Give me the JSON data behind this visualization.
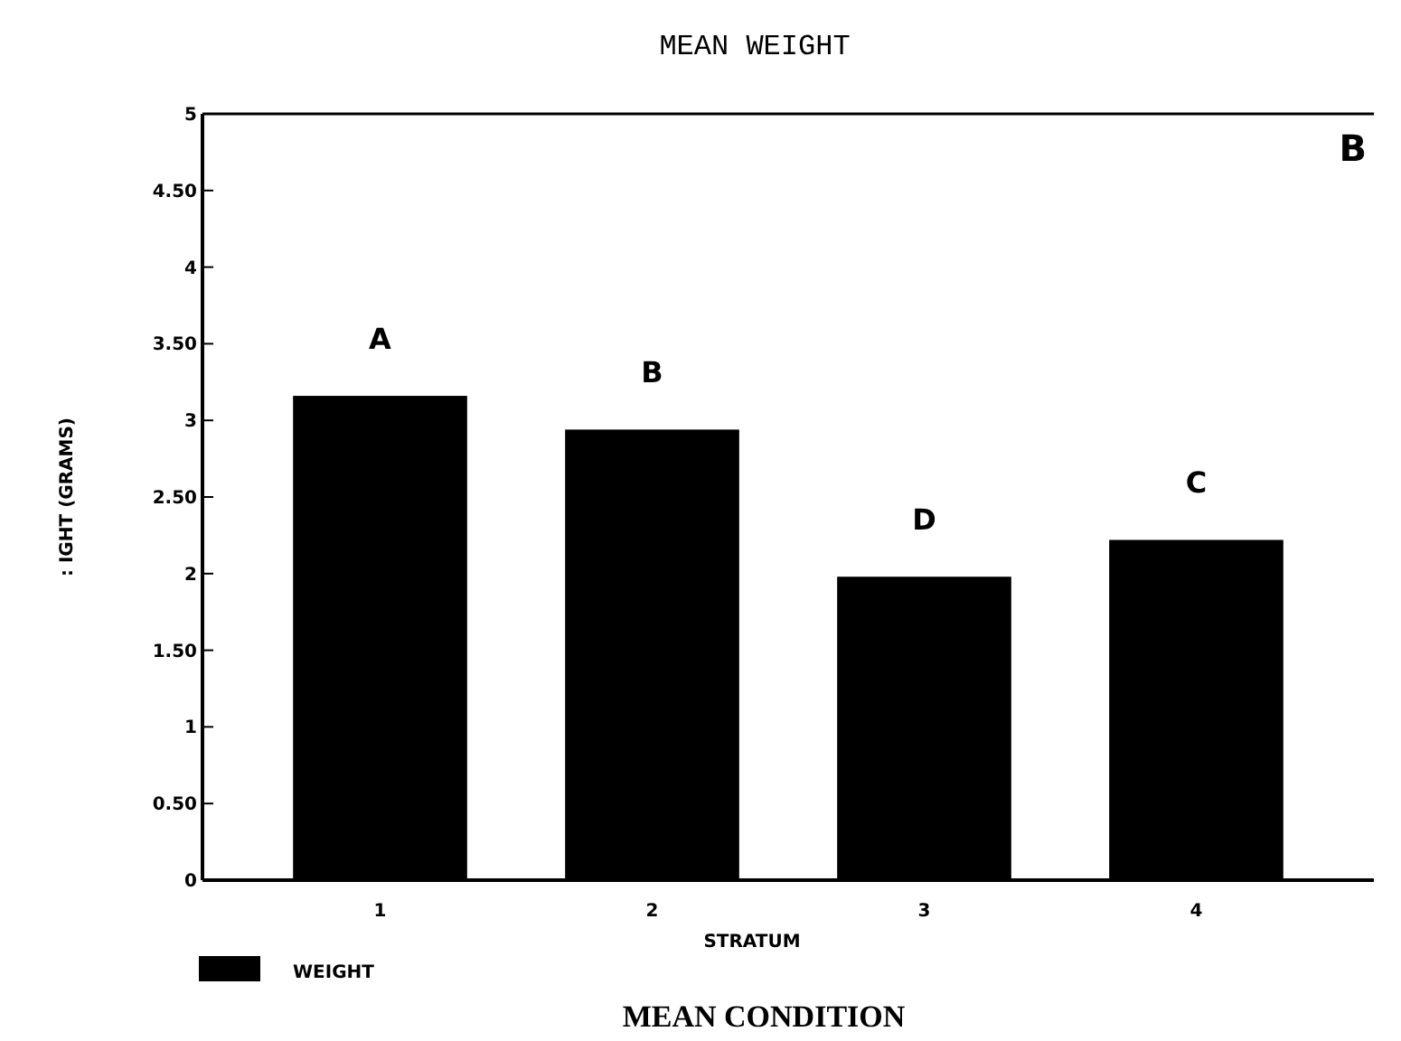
{
  "chart_data": {
    "type": "bar",
    "title": "MEAN  WEIGHT",
    "xlabel": "STRATUM",
    "ylabel": ": IGHT (GRAMS)",
    "categories": [
      "1",
      "2",
      "3",
      "4"
    ],
    "series": [
      {
        "name": "WEIGHT",
        "color": "#000000",
        "values": [
          3.16,
          2.94,
          1.98,
          2.22
        ]
      }
    ],
    "ylim": [
      0,
      5
    ],
    "yticks": [
      0,
      {
        "value": 0.5,
        "label": "0.50"
      },
      1,
      {
        "value": 1.5,
        "label": "1.50"
      },
      2,
      {
        "value": 2.5,
        "label": "2.50"
      },
      3,
      {
        "value": 3.5,
        "label": "3.50"
      },
      4,
      {
        "value": 4.5,
        "label": "4.50"
      },
      5
    ],
    "annotations": [
      "A",
      "B",
      "D",
      "C",
      "B",
      "MEAN CONDITION"
    ],
    "legend": "bottom left",
    "grid": false
  }
}
